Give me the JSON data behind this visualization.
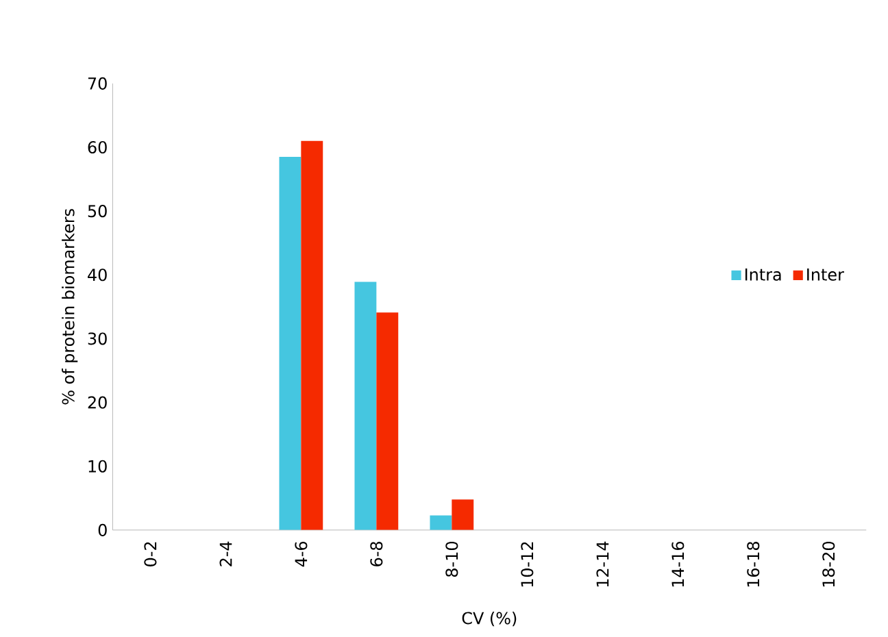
{
  "chart_data": {
    "type": "bar",
    "xlabel": "CV (%)",
    "ylabel": "% of protein biomarkers",
    "categories": [
      "0-2",
      "2-4",
      "4-6",
      "6-8",
      "8-10",
      "10-12",
      "12-14",
      "14-16",
      "16-18",
      "18-20"
    ],
    "series": [
      {
        "name": "Intra",
        "color": "#45c6e0",
        "values": [
          0,
          0,
          58.5,
          38.9,
          2.3,
          0,
          0,
          0,
          0,
          0
        ]
      },
      {
        "name": "Inter",
        "color": "#f52a00",
        "values": [
          0,
          0,
          61,
          34.1,
          4.8,
          0,
          0,
          0,
          0,
          0
        ]
      }
    ],
    "ylim": [
      0,
      70
    ],
    "yticks": [
      0,
      10,
      20,
      30,
      40,
      50,
      60,
      70
    ],
    "legend": "right",
    "grid": false
  }
}
